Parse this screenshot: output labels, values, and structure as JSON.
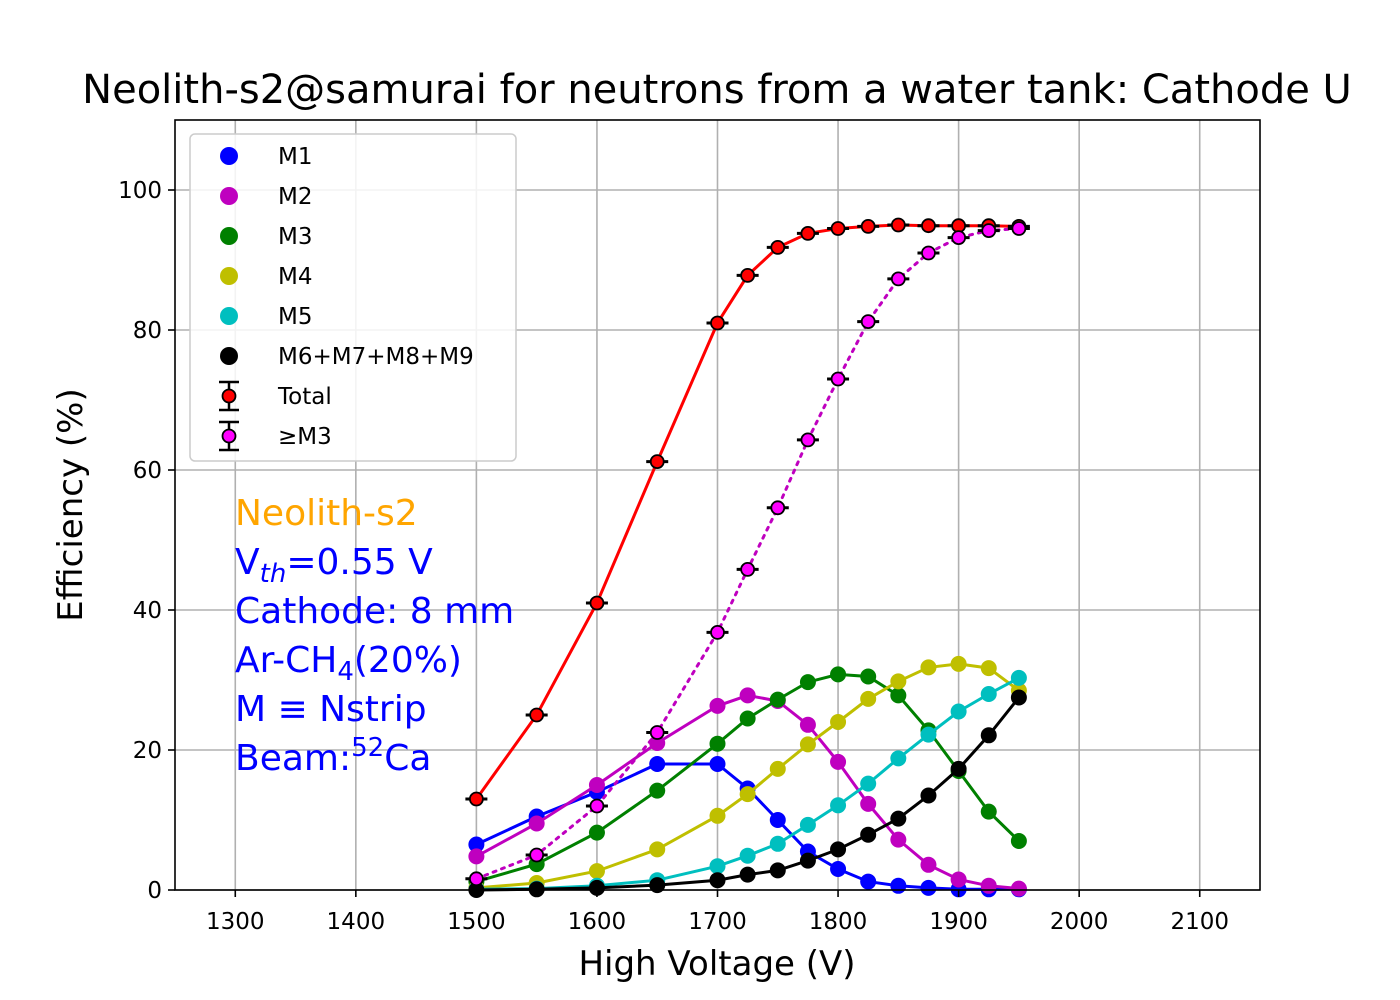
{
  "chart_data": {
    "type": "line",
    "title": "Neolith-s2@samurai for neutrons from a water tank: Cathode U",
    "xlabel": "High Voltage (V)",
    "ylabel": "Efficiency (%)",
    "xlim": [
      1250,
      2150
    ],
    "ylim": [
      0,
      110
    ],
    "xticks": [
      1300,
      1400,
      1500,
      1600,
      1700,
      1800,
      1900,
      2000,
      2100
    ],
    "yticks": [
      0,
      20,
      40,
      60,
      80,
      100
    ],
    "grid": true,
    "legend_position": "upper-left",
    "x": [
      1500,
      1550,
      1600,
      1650,
      1700,
      1725,
      1750,
      1775,
      1800,
      1825,
      1850,
      1875,
      1900,
      1925,
      1950
    ],
    "series": [
      {
        "name": "M1",
        "color": "#0000ff",
        "line": "solid",
        "values": [
          6.5,
          10.5,
          14,
          18,
          18,
          14.5,
          10,
          5.5,
          3,
          1.2,
          0.6,
          0.3,
          0.1,
          0.1,
          0.1
        ]
      },
      {
        "name": "M2",
        "color": "#bf00bf",
        "line": "solid",
        "values": [
          4.8,
          9.5,
          15,
          21,
          26.3,
          27.8,
          27,
          23.6,
          18.3,
          12.3,
          7.2,
          3.6,
          1.5,
          0.6,
          0.2
        ]
      },
      {
        "name": "M3",
        "color": "#008000",
        "line": "solid",
        "values": [
          1.2,
          3.7,
          8.2,
          14.2,
          20.9,
          24.5,
          27.2,
          29.7,
          30.8,
          30.5,
          27.8,
          22.8,
          17,
          11.2,
          7
        ]
      },
      {
        "name": "M4",
        "color": "#bfbf00",
        "line": "solid",
        "values": [
          0.3,
          1,
          2.7,
          5.8,
          10.6,
          13.7,
          17.3,
          20.8,
          24,
          27.3,
          29.8,
          31.8,
          32.3,
          31.7,
          28.5
        ]
      },
      {
        "name": "M5",
        "color": "#00bfbf",
        "line": "solid",
        "values": [
          0.1,
          0.2,
          0.6,
          1.4,
          3.4,
          4.9,
          6.6,
          9.3,
          12.1,
          15.2,
          18.8,
          22.2,
          25.5,
          28,
          30.3
        ]
      },
      {
        "name": "M6+M7+M8+M9",
        "color": "#000000",
        "line": "solid",
        "values": [
          0,
          0.1,
          0.3,
          0.7,
          1.4,
          2.2,
          2.8,
          4.2,
          5.8,
          7.9,
          10.2,
          13.5,
          17.3,
          22.1,
          27.5
        ]
      },
      {
        "name": "Total",
        "color": "#ff0000",
        "line": "solid",
        "errorbars": true,
        "values": [
          13,
          25,
          41,
          61.2,
          81,
          87.8,
          91.8,
          93.8,
          94.5,
          94.8,
          95,
          94.9,
          94.9,
          94.9,
          94.8
        ]
      },
      {
        "name": "≥M3",
        "color": "#ff00ff",
        "line": "dotted",
        "line_color": "#bf00bf",
        "errorbars": true,
        "values": [
          1.6,
          5,
          12,
          22.5,
          36.8,
          45.8,
          54.6,
          64.3,
          73,
          81.2,
          87.3,
          91,
          93.2,
          94.2,
          94.5
        ]
      }
    ],
    "annotations": {
      "detector": {
        "text": "Neolith-s2",
        "color": "#ffa500"
      },
      "threshold": {
        "base": "V",
        "sub": "th",
        "rest": "=0.55 V",
        "color": "#0000ff"
      },
      "cathode": {
        "text": "Cathode: 8 mm",
        "color": "#0000ff"
      },
      "gas": {
        "pre": "Ar-CH",
        "sub": "4",
        "post": "(20%)",
        "color": "#0000ff"
      },
      "mult": {
        "text": "M ≡ Nstrip",
        "color": "#0000ff"
      },
      "beam": {
        "pre": "Beam:",
        "sup": "52",
        "post": "Ca",
        "color": "#0000ff"
      }
    }
  }
}
